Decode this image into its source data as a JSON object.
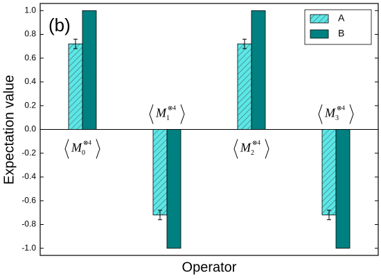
{
  "chart_data": {
    "type": "bar",
    "title": "(b)",
    "x_label": "Operator",
    "y_label": "Expectation value",
    "categories": [
      {
        "base": "M",
        "sub": "0",
        "sup": "⊗4"
      },
      {
        "base": "M",
        "sub": "1",
        "sup": "⊗4"
      },
      {
        "base": "M",
        "sub": "2",
        "sup": "⊗4"
      },
      {
        "base": "M",
        "sub": "3",
        "sup": "⊗4"
      }
    ],
    "series": [
      {
        "name": "A",
        "color": "#5ce6e6",
        "hatch": true,
        "values": [
          0.72,
          -0.72,
          0.72,
          -0.72
        ],
        "errors": [
          0.04,
          0.04,
          0.04,
          0.04
        ]
      },
      {
        "name": "B",
        "color": "#008080",
        "hatch": false,
        "values": [
          1.0,
          -1.0,
          1.0,
          -1.0
        ]
      }
    ],
    "ylim": [
      -1.06,
      1.06
    ],
    "yticks": [
      {
        "value": -1.0,
        "label": "-1.0"
      },
      -0.8,
      -0.6,
      -0.4,
      -0.2,
      {
        "value": 0,
        "label": "0.0"
      },
      0.2,
      0.4,
      0.6,
      0.8,
      {
        "value": 1.0,
        "label": "1.0"
      }
    ],
    "legend": "top-right"
  }
}
